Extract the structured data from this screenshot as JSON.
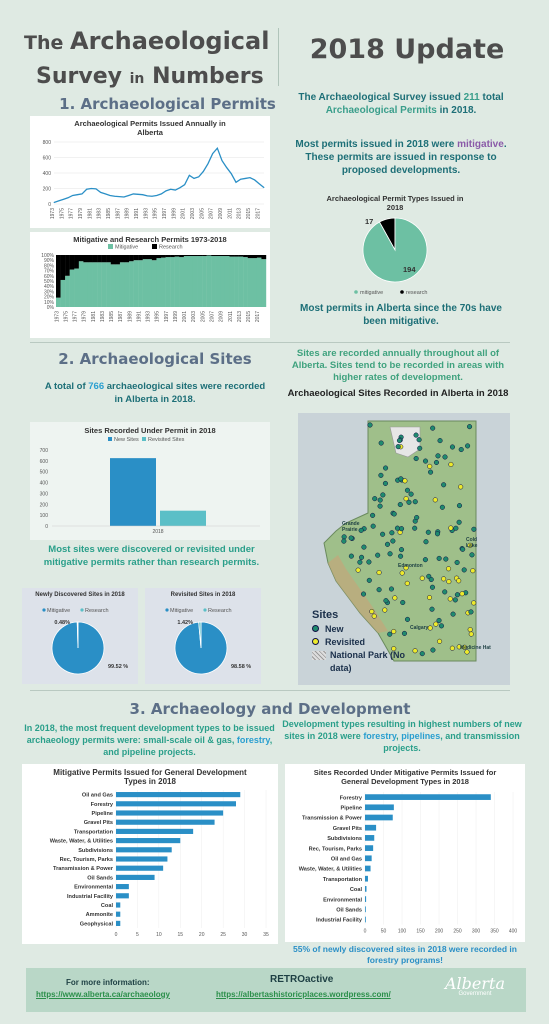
{
  "header": {
    "title_line1_pre": "The ",
    "title_line1_main": "Archaeological",
    "title_line2_main": "Survey ",
    "title_line2_in": "in",
    "title_line2_end": "Numbers",
    "update_title": "2018 Update"
  },
  "section1": {
    "heading": "1. Archaeological Permits",
    "intro_a": "The Archaeological Survey issued ",
    "intro_num": "211",
    "intro_b": " total ",
    "intro_c": "Archaeological Permits",
    "intro_d": " in 2018.",
    "mitig_a": "Most permits issued in 2018 were ",
    "mitig_word": "mitigative",
    "mitig_b": ". These permits are issued in response to proposed developments.",
    "since70": "Most permits in Alberta since the 70s have been mitigative."
  },
  "section2": {
    "heading": "2. Archaeological Sites",
    "total_a": "A total of ",
    "total_num": "766",
    "total_b": " archaeological sites were recorded in Alberta in 2018.",
    "recorded_text": "Sites are recorded annually throughout all of Alberta. Sites tend to be recorded in areas with higher rates of development.",
    "mitig_note": "Most sites were discovered or revisited under mitigative permits rather than research permits.",
    "map_title": "Archaeological Sites Recorded in Alberta in 2018",
    "map_legend_title": "Sites",
    "map_legend_new": "New",
    "map_legend_revisited": "Revisited",
    "map_legend_park": "National Park (No data)",
    "city_grande": "Grande Prairie",
    "city_edmonton": "Edmonton",
    "city_cold": "Cold Lake",
    "city_calgary": "Calgary",
    "city_medicine": "Medicine Hat"
  },
  "section3": {
    "heading": "3. Archaeology and Development",
    "left_a": "In 2018, the most frequent development types to be issued archaeology permits were: small-scale oil & gas, ",
    "left_forestry": "forestry",
    "left_b": ", and pipeline projects.",
    "right_a": "Development types resulting in highest numbers of new sites in 2018 were ",
    "right_forestry": "forestry",
    "right_sep": ", ",
    "right_pipelines": "pipelines",
    "right_b": ", and transmission projects.",
    "forestry_note": "55% of newly discovered sites in 2018 were recorded in forestry programs!"
  },
  "footer": {
    "more_info": "For more information:",
    "link1": "https://www.alberta.ca/archaeology",
    "retro": "RETROactive",
    "link2": "https://albertashistoricplaces.wordpress.com/",
    "logo_text": "Alberta",
    "logo_sub": "Government"
  },
  "colors": {
    "mitigative": "#6dc0a3",
    "research": "#000000",
    "new_sites": "#2a8fc6",
    "revisited": "#5bbfc7",
    "bar_blue": "#2a8fc6",
    "line": "#2a8fc6"
  },
  "chart_data": [
    {
      "type": "line",
      "title": "Archaeological Permits Issued Annually in Alberta",
      "x": [
        "1973",
        "1974",
        "1975",
        "1976",
        "1977",
        "1978",
        "1979",
        "1980",
        "1981",
        "1982",
        "1983",
        "1984",
        "1985",
        "1986",
        "1987",
        "1988",
        "1989",
        "1990",
        "1991",
        "1992",
        "1993",
        "1994",
        "1995",
        "1996",
        "1997",
        "1998",
        "1999",
        "2000",
        "2001",
        "2002",
        "2003",
        "2004",
        "2005",
        "2006",
        "2007",
        "2008",
        "2009",
        "2010",
        "2011",
        "2012",
        "2013",
        "2014",
        "2015",
        "2016",
        "2017",
        "2018"
      ],
      "x_ticks": [
        "1973",
        "1975",
        "1977",
        "1979",
        "1981",
        "1983",
        "1985",
        "1987",
        "1989",
        "1991",
        "1993",
        "1995",
        "1997",
        "1999",
        "2001",
        "2003",
        "2005",
        "2007",
        "2009",
        "2011",
        "2013",
        "2015",
        "2017"
      ],
      "values": [
        20,
        40,
        60,
        80,
        110,
        120,
        130,
        190,
        200,
        195,
        150,
        130,
        110,
        100,
        95,
        90,
        110,
        130,
        125,
        120,
        105,
        100,
        110,
        130,
        170,
        190,
        180,
        210,
        250,
        370,
        330,
        350,
        420,
        520,
        650,
        720,
        560,
        470,
        390,
        280,
        320,
        330,
        340,
        310,
        260,
        211
      ],
      "ylim": [
        0,
        800
      ],
      "y_ticks": [
        0,
        200,
        400,
        600,
        800
      ]
    },
    {
      "type": "bar",
      "stacked": true,
      "title": "Mitigative and Research Permits 1973-2018",
      "legend": [
        "Mitigative",
        "Research"
      ],
      "x": [
        "1973",
        "1974",
        "1975",
        "1976",
        "1977",
        "1978",
        "1979",
        "1980",
        "1981",
        "1982",
        "1983",
        "1984",
        "1985",
        "1986",
        "1987",
        "1988",
        "1989",
        "1990",
        "1991",
        "1992",
        "1993",
        "1994",
        "1995",
        "1996",
        "1997",
        "1998",
        "1999",
        "2000",
        "2001",
        "2002",
        "2003",
        "2004",
        "2005",
        "2006",
        "2007",
        "2008",
        "2009",
        "2010",
        "2011",
        "2012",
        "2013",
        "2014",
        "2015",
        "2016",
        "2017",
        "2018"
      ],
      "x_ticks": [
        "1973",
        "1975",
        "1977",
        "1979",
        "1981",
        "1983",
        "1985",
        "1987",
        "1989",
        "1991",
        "1993",
        "1995",
        "1997",
        "1999",
        "2001",
        "2003",
        "2005",
        "2007",
        "2009",
        "2011",
        "2013",
        "2015",
        "2017"
      ],
      "series": [
        {
          "name": "Mitigative",
          "values": [
            18,
            52,
            60,
            72,
            74,
            88,
            86,
            86,
            86,
            86,
            86,
            86,
            82,
            82,
            86,
            86,
            88,
            90,
            90,
            92,
            92,
            90,
            94,
            95,
            96,
            96,
            97,
            96,
            98,
            98,
            98,
            98,
            98,
            99,
            98,
            98,
            98,
            98,
            97,
            97,
            97,
            96,
            94,
            94,
            95,
            92
          ]
        },
        {
          "name": "Research",
          "values": [
            82,
            48,
            40,
            28,
            26,
            12,
            14,
            14,
            14,
            14,
            14,
            14,
            18,
            18,
            14,
            14,
            12,
            10,
            10,
            8,
            8,
            10,
            6,
            5,
            4,
            4,
            3,
            4,
            2,
            2,
            2,
            2,
            2,
            1,
            2,
            2,
            2,
            2,
            3,
            3,
            3,
            4,
            6,
            6,
            5,
            8
          ]
        }
      ],
      "y_ticks": [
        "0%",
        "10%",
        "20%",
        "30%",
        "40%",
        "50%",
        "60%",
        "70%",
        "80%",
        "90%",
        "100%"
      ]
    },
    {
      "type": "pie",
      "title": "Archaeological Permit Types Issued in 2018",
      "labels": [
        "mitigative",
        "research"
      ],
      "values": [
        194,
        17
      ]
    },
    {
      "type": "bar",
      "title": "Sites Recorded Under Permit in 2018",
      "legend": [
        "New Sites",
        "Revisited Sites"
      ],
      "categories": [
        "2018"
      ],
      "series": [
        {
          "name": "New Sites",
          "values": [
            625
          ]
        },
        {
          "name": "Revisited Sites",
          "values": [
            141
          ]
        }
      ],
      "ylim": [
        0,
        700
      ],
      "y_ticks": [
        0,
        100,
        200,
        300,
        400,
        500,
        600,
        700
      ]
    },
    {
      "type": "pie",
      "title": "Newly Discovered Sites in 2018",
      "legend": [
        "Mitigative",
        "Research"
      ],
      "labels": [
        "Mitigative",
        "Research"
      ],
      "values": [
        99.52,
        0.48
      ],
      "value_labels": [
        "99.52 %",
        "0.48%"
      ]
    },
    {
      "type": "pie",
      "title": "Revisited Sites in 2018",
      "legend": [
        "Mitigative",
        "Research"
      ],
      "labels": [
        "Mitigative",
        "Research"
      ],
      "values": [
        98.58,
        1.42
      ],
      "value_labels": [
        "98.58 %",
        "1.42%"
      ]
    },
    {
      "type": "bar",
      "orientation": "horizontal",
      "title": "Mitigative Permits Issued for General Development Types in 2018",
      "categories": [
        "Oil and Gas",
        "Forestry",
        "Pipeline",
        "Gravel Pits",
        "Transportation",
        "Waste, Water, & Utilities",
        "Subdivisions",
        "Rec, Tourism, Parks",
        "Transmission & Power",
        "Oil Sands",
        "Environmental",
        "Industrial Facility",
        "Coal",
        "Ammonite",
        "Geophysical"
      ],
      "values": [
        29,
        28,
        25,
        23,
        18,
        15,
        13,
        12,
        11,
        9,
        3,
        3,
        1,
        1,
        1
      ],
      "xlim": [
        0,
        35
      ],
      "x_ticks": [
        0,
        5,
        10,
        15,
        20,
        25,
        30,
        35
      ]
    },
    {
      "type": "bar",
      "orientation": "horizontal",
      "title": "Sites Recorded Under Mitigative Permits Issued for General Development Types in 2018",
      "categories": [
        "Forestry",
        "Pipeline",
        "Transmission & Power",
        "Gravel Pits",
        "Subdivisions",
        "Rec, Tourism, Parks",
        "Oil and Gas",
        "Waste, Water, & Utilities",
        "Transportation",
        "Coal",
        "Environmental",
        "Oil Sands",
        "Industrial Facility"
      ],
      "values": [
        340,
        78,
        75,
        30,
        25,
        22,
        18,
        15,
        8,
        4,
        3,
        2,
        1
      ],
      "xlim": [
        0,
        400
      ],
      "x_ticks": [
        0,
        50,
        100,
        150,
        200,
        250,
        300,
        350,
        400
      ]
    }
  ]
}
